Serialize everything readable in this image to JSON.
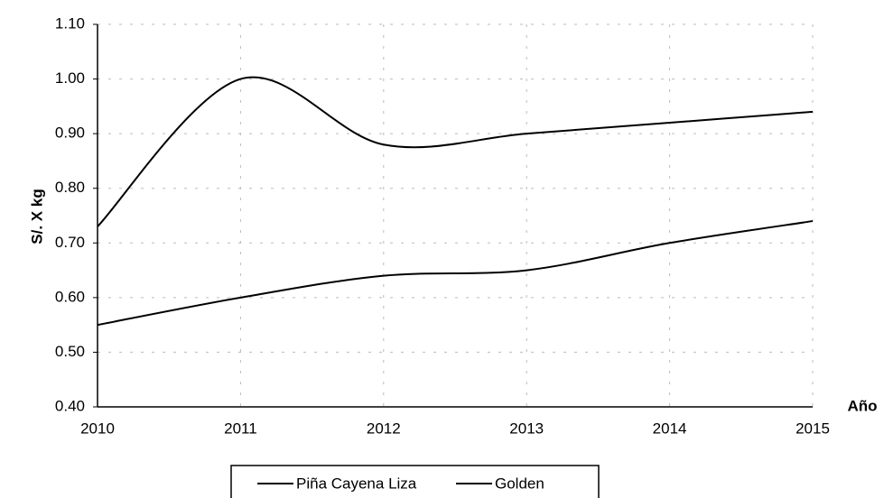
{
  "chart_data": {
    "type": "line",
    "x_label": "Año",
    "y_label": "S/. X kg",
    "x": [
      2010,
      2011,
      2012,
      2013,
      2014,
      2015
    ],
    "series": [
      {
        "name": "Piña Cayena Liza",
        "color": "#000000",
        "values": [
          0.55,
          0.6,
          0.64,
          0.65,
          0.7,
          0.74
        ]
      },
      {
        "name": "Golden",
        "color": "#000000",
        "values": [
          0.73,
          1.0,
          0.88,
          0.9,
          0.92,
          0.94
        ]
      }
    ],
    "xlim": [
      2010,
      2015
    ],
    "xticks": [
      2010,
      2011,
      2012,
      2013,
      2014,
      2015
    ],
    "ylim": [
      0.4,
      1.1
    ],
    "yticks": [
      {
        "value": 0.4,
        "label": "0.40"
      },
      {
        "value": 0.5,
        "label": "0.50"
      },
      {
        "value": 0.6,
        "label": "0.60"
      },
      {
        "value": 0.7,
        "label": "0.70"
      },
      {
        "value": 0.8,
        "label": "0.80"
      },
      {
        "value": 0.9,
        "label": "0.90"
      },
      {
        "value": 1.0,
        "label": "1.00"
      },
      {
        "value": 1.1,
        "label": "1.10"
      }
    ],
    "grid": true,
    "legend": "bottom"
  }
}
